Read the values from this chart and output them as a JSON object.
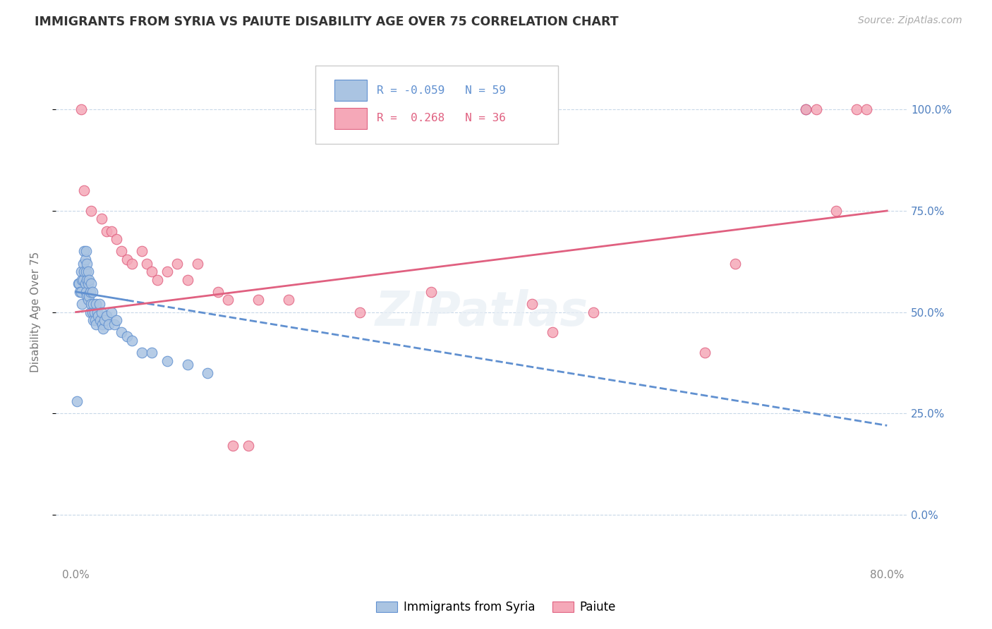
{
  "title": "IMMIGRANTS FROM SYRIA VS PAIUTE DISABILITY AGE OVER 75 CORRELATION CHART",
  "source": "Source: ZipAtlas.com",
  "ylabel": "Disability Age Over 75",
  "xlim": [
    -2,
    82
  ],
  "ylim": [
    -12,
    112
  ],
  "ytick_vals": [
    0,
    25,
    50,
    75,
    100
  ],
  "xtick_vals": [
    0,
    80
  ],
  "xtick_labels": [
    "0.0%",
    "80.0%"
  ],
  "legend_labels": [
    "Immigrants from Syria",
    "Paiute"
  ],
  "R_syria": -0.059,
  "N_syria": 59,
  "R_paiute": 0.268,
  "N_paiute": 36,
  "syria_color": "#aac4e2",
  "paiute_color": "#f5a8b8",
  "syria_edge_color": "#6090d0",
  "paiute_edge_color": "#e06080",
  "syria_line_color": "#6090d0",
  "paiute_line_color": "#e06080",
  "background_color": "#ffffff",
  "grid_color": "#c8d8e8",
  "right_tick_color": "#5080c0",
  "syria_x": [
    0.1,
    0.2,
    0.3,
    0.4,
    0.5,
    0.5,
    0.6,
    0.6,
    0.7,
    0.7,
    0.8,
    0.8,
    0.9,
    0.9,
    1.0,
    1.0,
    1.0,
    1.1,
    1.1,
    1.1,
    1.2,
    1.2,
    1.2,
    1.3,
    1.3,
    1.4,
    1.4,
    1.5,
    1.5,
    1.6,
    1.6,
    1.7,
    1.7,
    1.8,
    1.9,
    2.0,
    2.0,
    2.1,
    2.2,
    2.3,
    2.4,
    2.5,
    2.6,
    2.7,
    2.8,
    3.0,
    3.2,
    3.5,
    3.8,
    4.0,
    4.5,
    5.0,
    5.5,
    6.5,
    7.5,
    9.0,
    11.0,
    13.0,
    72.0
  ],
  "syria_y": [
    28,
    57,
    57,
    55,
    60,
    55,
    58,
    52,
    62,
    58,
    65,
    60,
    63,
    57,
    65,
    60,
    55,
    62,
    58,
    54,
    60,
    57,
    53,
    58,
    54,
    55,
    50,
    57,
    52,
    55,
    50,
    52,
    48,
    50,
    48,
    52,
    47,
    50,
    49,
    52,
    48,
    50,
    47,
    46,
    48,
    49,
    47,
    50,
    47,
    48,
    45,
    44,
    43,
    40,
    40,
    38,
    37,
    35,
    100
  ],
  "paiute_x": [
    0.5,
    0.8,
    1.5,
    2.5,
    3.0,
    3.5,
    4.0,
    4.5,
    5.0,
    5.5,
    6.5,
    7.0,
    7.5,
    8.0,
    9.0,
    10.0,
    11.0,
    12.0,
    14.0,
    15.0,
    15.5,
    17.0,
    18.0,
    21.0,
    28.0,
    35.0,
    45.0,
    47.0,
    51.0,
    62.0,
    65.0,
    72.0,
    73.0,
    75.0,
    77.0,
    78.0
  ],
  "paiute_y": [
    100,
    80,
    75,
    73,
    70,
    70,
    68,
    65,
    63,
    62,
    65,
    62,
    60,
    58,
    60,
    62,
    58,
    62,
    55,
    53,
    17,
    17,
    53,
    53,
    50,
    55,
    52,
    45,
    50,
    40,
    62,
    100,
    100,
    75,
    100,
    100
  ],
  "syria_trend_x0": 0,
  "syria_trend_y0": 55,
  "syria_trend_x1": 80,
  "syria_trend_y1": 22,
  "paiute_trend_x0": 0,
  "paiute_trend_y0": 50,
  "paiute_trend_x1": 80,
  "paiute_trend_y1": 75,
  "syria_solid_end": 5,
  "marker_size": 110
}
